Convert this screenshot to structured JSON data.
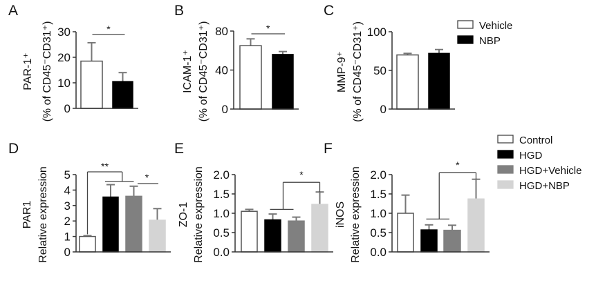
{
  "chart_data": [
    {
      "type": "bar",
      "panel": "A",
      "ylabel": [
        "PAR-1⁺",
        "(% of CD45⁻CD31⁺)"
      ],
      "ylim": [
        0,
        30
      ],
      "yticks": [
        "0",
        "10",
        "20",
        "30"
      ],
      "ytick_values": [
        0,
        10,
        20,
        30
      ],
      "categories": [
        "Vehicle",
        "NBP"
      ],
      "values": [
        18.5,
        10.5
      ],
      "error_upper": [
        25.7,
        14.0
      ],
      "significance": [
        {
          "groups": [
            0,
            1
          ],
          "label": "*"
        }
      ]
    },
    {
      "type": "bar",
      "panel": "B",
      "ylabel": [
        "ICAM-1⁺",
        "(% of CD45⁻CD31⁺)"
      ],
      "ylim": [
        0,
        80
      ],
      "yticks": [
        "0",
        "40",
        "80"
      ],
      "ytick_values": [
        0,
        40,
        80
      ],
      "categories": [
        "Vehicle",
        "NBP"
      ],
      "values": [
        65,
        56
      ],
      "error_upper": [
        72,
        59
      ],
      "significance": [
        {
          "groups": [
            0,
            1
          ],
          "label": "*"
        }
      ]
    },
    {
      "type": "bar",
      "panel": "C",
      "ylabel": [
        "MMP-9⁺",
        "(% of CD45⁻CD31⁺)"
      ],
      "ylim": [
        0,
        100
      ],
      "yticks": [
        "0",
        "50",
        "100"
      ],
      "ytick_values": [
        0,
        50,
        100
      ],
      "categories": [
        "Vehicle",
        "NBP"
      ],
      "values": [
        70,
        72
      ],
      "error_upper": [
        72,
        77
      ],
      "significance": []
    },
    {
      "type": "bar",
      "panel": "D",
      "ylabel": [
        "PAR1",
        "Relative expression"
      ],
      "ylim": [
        0,
        5
      ],
      "yticks": [
        "0",
        "1",
        "2",
        "3",
        "4",
        "5"
      ],
      "ytick_values": [
        0,
        1,
        2,
        3,
        4,
        5
      ],
      "categories": [
        "Control",
        "HGD",
        "HGD+Vehicle",
        "HGD+NBP"
      ],
      "values": [
        1.0,
        3.55,
        3.6,
        2.05
      ],
      "error_upper": [
        1.05,
        4.35,
        4.25,
        2.8
      ],
      "significance": [
        {
          "groups": [
            0,
            [
              1,
              2
            ]
          ],
          "label": "**"
        },
        {
          "groups": [
            2,
            3
          ],
          "label": "*"
        }
      ]
    },
    {
      "type": "bar",
      "panel": "E",
      "ylabel": [
        "ZO-1",
        "Relative expression"
      ],
      "ylim": [
        0,
        2.0
      ],
      "yticks": [
        "0.0",
        "0.5",
        "1.0",
        "1.5",
        "2.0"
      ],
      "ytick_values": [
        0,
        0.5,
        1,
        1.5,
        2
      ],
      "categories": [
        "Control",
        "HGD",
        "HGD+Vehicle",
        "HGD+NBP"
      ],
      "values": [
        1.05,
        0.83,
        0.8,
        1.23
      ],
      "error_upper": [
        1.1,
        0.98,
        0.9,
        1.55
      ],
      "significance": [
        {
          "groups": [
            [
              1,
              2
            ],
            3
          ],
          "label": "*"
        }
      ]
    },
    {
      "type": "bar",
      "panel": "F",
      "ylabel": [
        "iNOS",
        "Relative expression"
      ],
      "ylim": [
        0,
        2.0
      ],
      "yticks": [
        "0.0",
        "0.5",
        "1.0",
        "1.5",
        "2.0"
      ],
      "ytick_values": [
        0,
        0.5,
        1,
        1.5,
        2
      ],
      "categories": [
        "Control",
        "HGD",
        "HGD+Vehicle",
        "HGD+NBP"
      ],
      "values": [
        1.0,
        0.57,
        0.56,
        1.37
      ],
      "error_upper": [
        1.47,
        0.7,
        0.69,
        1.88
      ],
      "significance": [
        {
          "groups": [
            [
              1,
              2
            ],
            3
          ],
          "label": "*"
        }
      ]
    }
  ],
  "legends": [
    {
      "items": [
        {
          "label": "Vehicle",
          "color": "#ffffff"
        },
        {
          "label": "NBP",
          "color": "#000000"
        }
      ]
    },
    {
      "items": [
        {
          "label": "Control",
          "color": "#ffffff"
        },
        {
          "label": "HGD",
          "color": "#000000"
        },
        {
          "label": "HGD+Vehicle",
          "color": "#808080"
        },
        {
          "label": "HGD+NBP",
          "color": "#d4d4d4"
        }
      ]
    }
  ],
  "colors": {
    "Vehicle": "#ffffff",
    "NBP": "#000000",
    "Control": "#ffffff",
    "HGD": "#000000",
    "HGD+Vehicle": "#808080",
    "HGD+NBP": "#d4d4d4",
    "axis": "#333333",
    "error": "#777777"
  }
}
